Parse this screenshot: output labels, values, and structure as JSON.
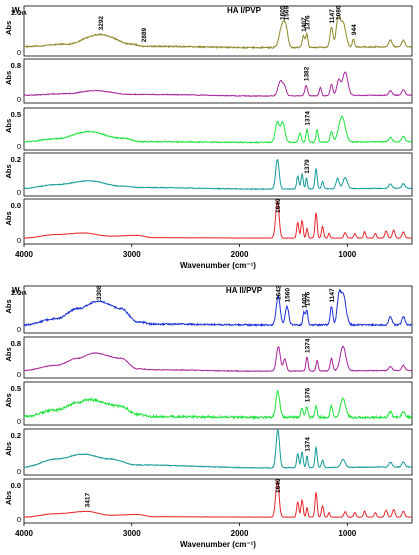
{
  "chart_data": [
    {
      "type": "line",
      "title": "HA I/PVP",
      "w_label_main": "W",
      "w_label_sub": "HA",
      "ylabel": "Abs",
      "xlabel": "Wavenumber (cm⁻¹)",
      "xlim": [
        4000,
        400
      ],
      "x_reversed": true,
      "x_ticks": [
        4000,
        3000,
        2000,
        1000
      ],
      "y_tick_labels": [
        "0",
        "1"
      ],
      "series": [
        {
          "name": "1.0",
          "color": "#8d8a2a",
          "noise": 0.015,
          "baseline": [
            [
              4000,
              0.12
            ],
            [
              3600,
              0.18
            ],
            [
              3292,
              0.4
            ],
            [
              3000,
              0.18
            ],
            [
              2889,
              0.13
            ],
            [
              1800,
              0.1
            ],
            [
              400,
              0.12
            ]
          ],
          "peaks": [
            [
              1605,
              0.5,
              25
            ],
            [
              1569,
              0.35,
              18
            ],
            [
              1407,
              0.26,
              12
            ],
            [
              1376,
              0.3,
              10
            ],
            [
              1147,
              0.45,
              14
            ],
            [
              1086,
              0.62,
              18
            ],
            [
              1040,
              0.55,
              25
            ],
            [
              944,
              0.18,
              10
            ],
            [
              600,
              0.15,
              15
            ],
            [
              480,
              0.15,
              15
            ]
          ],
          "labels": [
            {
              "x": 3292,
              "text": "3292"
            },
            {
              "x": 2889,
              "text": "2889"
            },
            {
              "x": 1605,
              "text": "1605"
            },
            {
              "x": 1569,
              "text": "1569"
            },
            {
              "x": 1407,
              "text": "1407"
            },
            {
              "x": 1376,
              "text": "1376"
            },
            {
              "x": 1147,
              "text": "1147"
            },
            {
              "x": 1086,
              "text": "1086"
            },
            {
              "x": 944,
              "text": "944"
            }
          ]
        },
        {
          "name": "0.8",
          "color": "#a8249c",
          "noise": 0.01,
          "baseline": [
            [
              4000,
              0.1
            ],
            [
              3600,
              0.14
            ],
            [
              3350,
              0.22
            ],
            [
              3000,
              0.12
            ],
            [
              2889,
              0.12
            ],
            [
              1800,
              0.08
            ],
            [
              400,
              0.1
            ]
          ],
          "peaks": [
            [
              1620,
              0.4,
              22
            ],
            [
              1580,
              0.2,
              15
            ],
            [
              1382,
              0.28,
              12
            ],
            [
              1250,
              0.22,
              10
            ],
            [
              1147,
              0.3,
              12
            ],
            [
              1080,
              0.4,
              18
            ],
            [
              1020,
              0.62,
              24
            ],
            [
              600,
              0.12,
              15
            ],
            [
              480,
              0.15,
              15
            ]
          ],
          "labels": [
            {
              "x": 1382,
              "text": "1382"
            }
          ]
        },
        {
          "name": "0.5",
          "color": "#1ee33a",
          "noise": 0.015,
          "baseline": [
            [
              4000,
              0.12
            ],
            [
              3700,
              0.2
            ],
            [
              3400,
              0.4
            ],
            [
              3100,
              0.22
            ],
            [
              2900,
              0.12
            ],
            [
              1800,
              0.1
            ],
            [
              400,
              0.12
            ]
          ],
          "peaks": [
            [
              1650,
              0.55,
              18
            ],
            [
              1600,
              0.55,
              20
            ],
            [
              1440,
              0.25,
              12
            ],
            [
              1374,
              0.35,
              10
            ],
            [
              1280,
              0.35,
              10
            ],
            [
              1147,
              0.3,
              12
            ],
            [
              1050,
              0.7,
              30
            ],
            [
              600,
              0.12,
              15
            ],
            [
              480,
              0.15,
              15
            ]
          ],
          "labels": [
            {
              "x": 1374,
              "text": "1374"
            }
          ]
        },
        {
          "name": "0.2",
          "color": "#14999a",
          "noise": 0.01,
          "baseline": [
            [
              4000,
              0.1
            ],
            [
              3700,
              0.2
            ],
            [
              3400,
              0.3
            ],
            [
              3100,
              0.16
            ],
            [
              2900,
              0.12
            ],
            [
              1800,
              0.08
            ],
            [
              400,
              0.1
            ]
          ],
          "peaks": [
            [
              1649,
              0.8,
              16
            ],
            [
              1460,
              0.35,
              10
            ],
            [
              1420,
              0.4,
              10
            ],
            [
              1379,
              0.3,
              8
            ],
            [
              1290,
              0.55,
              10
            ],
            [
              1230,
              0.2,
              10
            ],
            [
              1090,
              0.28,
              14
            ],
            [
              1020,
              0.3,
              20
            ],
            [
              600,
              0.12,
              15
            ],
            [
              480,
              0.12,
              15
            ]
          ],
          "labels": [
            {
              "x": 1379,
              "text": "1379"
            }
          ]
        },
        {
          "name": "0.0",
          "color": "#e8262a",
          "noise": 0.005,
          "baseline": [
            [
              4000,
              0.05
            ],
            [
              3700,
              0.14
            ],
            [
              3450,
              0.18
            ],
            [
              3200,
              0.1
            ],
            [
              2950,
              0.12
            ],
            [
              2800,
              0.06
            ],
            [
              1800,
              0.05
            ],
            [
              400,
              0.05
            ]
          ],
          "peaks": [
            [
              1649,
              0.95,
              16
            ],
            [
              1460,
              0.4,
              10
            ],
            [
              1420,
              0.45,
              10
            ],
            [
              1374,
              0.25,
              8
            ],
            [
              1290,
              0.65,
              10
            ],
            [
              1230,
              0.3,
              10
            ],
            [
              1170,
              0.12,
              8
            ],
            [
              1020,
              0.14,
              12
            ],
            [
              930,
              0.12,
              10
            ],
            [
              840,
              0.16,
              10
            ],
            [
              740,
              0.12,
              10
            ],
            [
              640,
              0.18,
              12
            ],
            [
              570,
              0.2,
              12
            ],
            [
              480,
              0.16,
              12
            ]
          ],
          "labels": [
            {
              "x": 1649,
              "text": "1649"
            }
          ]
        }
      ]
    },
    {
      "type": "line",
      "title": "HA II/PVP",
      "w_label_main": "W",
      "w_label_sub": "HA",
      "ylabel": "Abs",
      "xlabel": "Wavenumber (cm⁻¹)",
      "xlim": [
        4000,
        400
      ],
      "x_reversed": true,
      "x_ticks": [
        4000,
        3000,
        2000,
        1000
      ],
      "y_tick_labels": [
        "0",
        "1"
      ],
      "series": [
        {
          "name": "1.0",
          "color": "#1c2fd6",
          "noise": 0.02,
          "baseline": [
            [
              4000,
              0.1
            ],
            [
              3700,
              0.25
            ],
            [
              3500,
              0.5
            ],
            [
              3308,
              0.68
            ],
            [
              3100,
              0.5
            ],
            [
              2950,
              0.18
            ],
            [
              2800,
              0.12
            ],
            [
              1800,
              0.1
            ],
            [
              400,
              0.1
            ]
          ],
          "peaks": [
            [
              1642,
              0.7,
              18
            ],
            [
              1560,
              0.45,
              16
            ],
            [
              1403,
              0.3,
              10
            ],
            [
              1376,
              0.35,
              10
            ],
            [
              1147,
              0.45,
              12
            ],
            [
              1080,
              0.55,
              16
            ],
            [
              1040,
              0.75,
              26
            ],
            [
              600,
              0.2,
              15
            ],
            [
              480,
              0.2,
              15
            ]
          ],
          "labels": [
            {
              "x": 3308,
              "text": "3308"
            },
            {
              "x": 1642,
              "text": "1642"
            },
            {
              "x": 1560,
              "text": "1560"
            },
            {
              "x": 1403,
              "text": "1403"
            },
            {
              "x": 1376,
              "text": "1376"
            },
            {
              "x": 1147,
              "text": "1147"
            }
          ]
        },
        {
          "name": "0.8",
          "color": "#a8249c",
          "noise": 0.01,
          "baseline": [
            [
              4000,
              0.1
            ],
            [
              3700,
              0.25
            ],
            [
              3500,
              0.45
            ],
            [
              3350,
              0.6
            ],
            [
              3100,
              0.45
            ],
            [
              2950,
              0.15
            ],
            [
              2800,
              0.12
            ],
            [
              1800,
              0.08
            ],
            [
              400,
              0.1
            ]
          ],
          "peaks": [
            [
              1640,
              0.7,
              18
            ],
            [
              1580,
              0.35,
              14
            ],
            [
              1374,
              0.4,
              10
            ],
            [
              1280,
              0.3,
              10
            ],
            [
              1147,
              0.35,
              12
            ],
            [
              1040,
              0.7,
              26
            ],
            [
              600,
              0.12,
              15
            ],
            [
              480,
              0.15,
              15
            ]
          ],
          "labels": [
            {
              "x": 1374,
              "text": "1374"
            }
          ]
        },
        {
          "name": "0.5",
          "color": "#1ee33a",
          "noise": 0.03,
          "baseline": [
            [
              4000,
              0.12
            ],
            [
              3700,
              0.3
            ],
            [
              3500,
              0.5
            ],
            [
              3400,
              0.58
            ],
            [
              3100,
              0.4
            ],
            [
              2950,
              0.18
            ],
            [
              2800,
              0.12
            ],
            [
              1800,
              0.1
            ],
            [
              400,
              0.1
            ]
          ],
          "peaks": [
            [
              1645,
              0.7,
              18
            ],
            [
              1420,
              0.25,
              12
            ],
            [
              1376,
              0.3,
              10
            ],
            [
              1290,
              0.3,
              10
            ],
            [
              1147,
              0.3,
              12
            ],
            [
              1040,
              0.5,
              24
            ],
            [
              600,
              0.15,
              15
            ],
            [
              480,
              0.15,
              15
            ]
          ],
          "labels": [
            {
              "x": 1376,
              "text": "1376"
            }
          ]
        },
        {
          "name": "0.2",
          "color": "#14999a",
          "noise": 0.01,
          "baseline": [
            [
              4000,
              0.1
            ],
            [
              3700,
              0.3
            ],
            [
              3450,
              0.42
            ],
            [
              3200,
              0.3
            ],
            [
              2950,
              0.15
            ],
            [
              1800,
              0.08
            ],
            [
              400,
              0.1
            ]
          ],
          "peaks": [
            [
              1645,
              0.95,
              16
            ],
            [
              1460,
              0.35,
              10
            ],
            [
              1420,
              0.4,
              10
            ],
            [
              1374,
              0.3,
              8
            ],
            [
              1290,
              0.5,
              10
            ],
            [
              1230,
              0.18,
              10
            ],
            [
              1040,
              0.2,
              20
            ],
            [
              600,
              0.12,
              15
            ],
            [
              480,
              0.12,
              15
            ]
          ],
          "labels": [
            {
              "x": 1374,
              "text": "1374"
            }
          ]
        },
        {
          "name": "0.0",
          "color": "#e8262a",
          "noise": 0.005,
          "baseline": [
            [
              4000,
              0.05
            ],
            [
              3700,
              0.14
            ],
            [
              3417,
              0.2
            ],
            [
              3200,
              0.1
            ],
            [
              2950,
              0.12
            ],
            [
              2800,
              0.06
            ],
            [
              1800,
              0.05
            ],
            [
              400,
              0.05
            ]
          ],
          "peaks": [
            [
              1649,
              0.95,
              16
            ],
            [
              1460,
              0.4,
              10
            ],
            [
              1420,
              0.45,
              10
            ],
            [
              1374,
              0.25,
              8
            ],
            [
              1290,
              0.65,
              10
            ],
            [
              1230,
              0.3,
              10
            ],
            [
              1170,
              0.12,
              8
            ],
            [
              1020,
              0.14,
              12
            ],
            [
              930,
              0.12,
              10
            ],
            [
              840,
              0.16,
              10
            ],
            [
              740,
              0.12,
              10
            ],
            [
              640,
              0.18,
              12
            ],
            [
              570,
              0.2,
              12
            ],
            [
              480,
              0.16,
              12
            ]
          ],
          "labels": [
            {
              "x": 3417,
              "text": "3417"
            },
            {
              "x": 1649,
              "text": "1649"
            }
          ]
        }
      ]
    }
  ]
}
